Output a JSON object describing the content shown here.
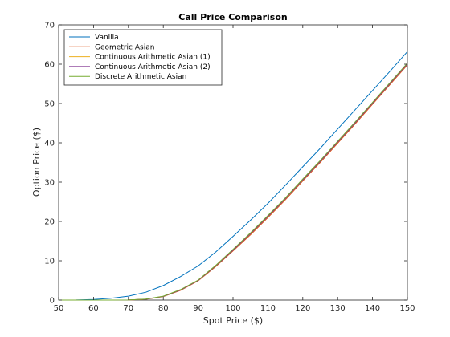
{
  "chart_data": {
    "type": "line",
    "title": "Call Price Comparison",
    "xlabel": "Spot Price ($)",
    "ylabel": "Option Price ($)",
    "xlim": [
      50,
      150
    ],
    "ylim": [
      0,
      70
    ],
    "xticks": [
      50,
      60,
      70,
      80,
      90,
      100,
      110,
      120,
      130,
      140,
      150
    ],
    "yticks": [
      0,
      10,
      20,
      30,
      40,
      50,
      60,
      70
    ],
    "grid": false,
    "legend_position": "top-left",
    "x": [
      50,
      55,
      60,
      65,
      70,
      75,
      80,
      85,
      90,
      95,
      100,
      105,
      110,
      115,
      120,
      125,
      130,
      135,
      140,
      145,
      150
    ],
    "series": [
      {
        "name": "Vanilla",
        "color": "#0072BD",
        "values": [
          0.0,
          0.02,
          0.15,
          0.45,
          1.0,
          2.0,
          3.7,
          6.0,
          8.7,
          12.2,
          16.2,
          20.3,
          24.6,
          29.2,
          33.9,
          38.6,
          43.5,
          48.4,
          53.3,
          58.2,
          63.2
        ]
      },
      {
        "name": "Geometric Asian",
        "color": "#D95319",
        "values": [
          0.0,
          0.0,
          0.0,
          0.0,
          0.02,
          0.2,
          0.9,
          2.5,
          4.9,
          8.5,
          12.5,
          16.6,
          21.0,
          25.5,
          30.3,
          35.0,
          39.9,
          44.8,
          49.8,
          54.8,
          59.8
        ]
      },
      {
        "name": "Continuous Arithmetic Asian (1)",
        "color": "#EDB120",
        "values": [
          0.0,
          0.0,
          0.0,
          0.0,
          0.02,
          0.22,
          0.95,
          2.6,
          5.0,
          8.7,
          12.7,
          16.9,
          21.3,
          25.8,
          30.6,
          35.3,
          40.2,
          45.1,
          50.1,
          55.1,
          60.1
        ]
      },
      {
        "name": "Continuous Arithmetic Asian (2)",
        "color": "#7E2F8E",
        "values": [
          0.0,
          0.0,
          0.0,
          0.0,
          0.02,
          0.22,
          0.95,
          2.6,
          5.0,
          8.7,
          12.7,
          16.9,
          21.3,
          25.8,
          30.6,
          35.3,
          40.2,
          45.1,
          50.1,
          55.1,
          60.1
        ]
      },
      {
        "name": "Discrete Arithmetic Asian",
        "color": "#77AC30",
        "values": [
          0.0,
          0.0,
          0.0,
          0.0,
          0.02,
          0.25,
          1.0,
          2.7,
          5.1,
          8.8,
          12.9,
          17.1,
          21.5,
          26.0,
          30.8,
          35.5,
          40.4,
          45.3,
          50.3,
          55.3,
          60.3
        ]
      }
    ]
  }
}
